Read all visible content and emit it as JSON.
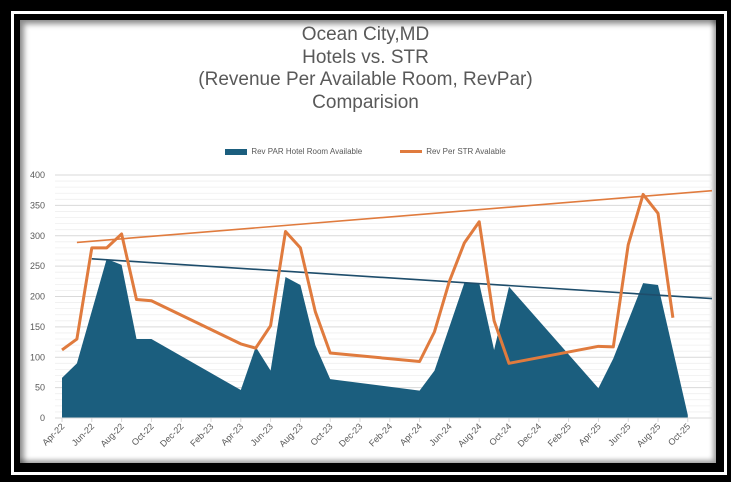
{
  "chart_data": {
    "type": "area+line",
    "title_lines": [
      "Ocean City,MD",
      "Hotels vs. STR",
      "(Revenue Per Available Room, RevPar)",
      "Comparision"
    ],
    "title": "Ocean City,MD Hotels vs. STR (Revenue Per Available Room, RevPar) Comparision",
    "xlabel": "",
    "ylabel": "",
    "ylim": [
      0,
      400
    ],
    "yticks": [
      0,
      50,
      100,
      150,
      200,
      250,
      300,
      350,
      400
    ],
    "grid": true,
    "legend_position": "top",
    "x_tick_labels": [
      "Apr-22",
      "Jun-22",
      "Aug-22",
      "Oct-22",
      "Dec-22",
      "Feb-23",
      "Apr-23",
      "Jun-23",
      "Aug-23",
      "Oct-23",
      "Dec-23",
      "Feb-24",
      "Apr-24",
      "Jun-24",
      "Aug-24",
      "Oct-24",
      "Dec-24",
      "Feb-25",
      "Apr-25",
      "Jun-25",
      "Aug-25",
      "Oct-25"
    ],
    "series": [
      {
        "name": "Rev PAR Hotel Room Available",
        "type": "area",
        "color": "#1b5e7e",
        "points": [
          [
            "Apr-22",
            66
          ],
          [
            "May-22",
            90
          ],
          [
            "Jul-22",
            262
          ],
          [
            "Aug-22",
            252
          ],
          [
            "Sep-22",
            130
          ],
          [
            "Oct-22",
            130
          ],
          [
            "Apr-23",
            46
          ],
          [
            "May-23",
            117
          ],
          [
            "Jun-23",
            78
          ],
          [
            "Jul-23",
            232
          ],
          [
            "Aug-23",
            219
          ],
          [
            "Sep-23",
            120
          ],
          [
            "Oct-23",
            64
          ],
          [
            "Apr-24",
            45
          ],
          [
            "May-24",
            78
          ],
          [
            "Jul-24",
            222
          ],
          [
            "Aug-24",
            222
          ],
          [
            "Sep-24",
            112
          ],
          [
            "Oct-24",
            216
          ],
          [
            "Apr-25",
            49
          ],
          [
            "May-25",
            98
          ],
          [
            "Jul-25",
            222
          ],
          [
            "Aug-25",
            219
          ],
          [
            "Oct-25",
            5
          ]
        ],
        "trendline": {
          "type": "linear",
          "color": "#1e4d6b",
          "start": [
            "Jun-22",
            262
          ],
          "end": [
            "Dec-25",
            196
          ]
        }
      },
      {
        "name": "Rev Per STR Avalable",
        "type": "line",
        "color": "#e07b3e",
        "points": [
          [
            "Apr-22",
            112
          ],
          [
            "May-22",
            130
          ],
          [
            "Jun-22",
            280
          ],
          [
            "Jul-22",
            280
          ],
          [
            "Aug-22",
            303
          ],
          [
            "Sep-22",
            195
          ],
          [
            "Oct-22",
            193
          ],
          [
            "Apr-23",
            122
          ],
          [
            "May-23",
            115
          ],
          [
            "Jun-23",
            152
          ],
          [
            "Jul-23",
            307
          ],
          [
            "Aug-23",
            280
          ],
          [
            "Sep-23",
            175
          ],
          [
            "Oct-23",
            107
          ],
          [
            "Apr-24",
            93
          ],
          [
            "May-24",
            142
          ],
          [
            "Jun-24",
            225
          ],
          [
            "Jul-24",
            288
          ],
          [
            "Aug-24",
            323
          ],
          [
            "Sep-24",
            160
          ],
          [
            "Oct-24",
            90
          ],
          [
            "Apr-25",
            118
          ],
          [
            "May-25",
            117
          ],
          [
            "Jun-25",
            285
          ],
          [
            "Jul-25",
            368
          ],
          [
            "Aug-25",
            337
          ],
          [
            "Sep-25",
            165
          ]
        ],
        "trendline": {
          "type": "linear",
          "color": "#e07b3e",
          "start": [
            "May-22",
            289
          ],
          "end": [
            "Dec-25",
            375
          ]
        }
      }
    ]
  },
  "legend": {
    "items": [
      {
        "label": "Rev PAR Hotel Room Available",
        "color": "#1b5e7e"
      },
      {
        "label": "Rev Per STR Avalable",
        "color": "#e07b3e"
      }
    ]
  }
}
